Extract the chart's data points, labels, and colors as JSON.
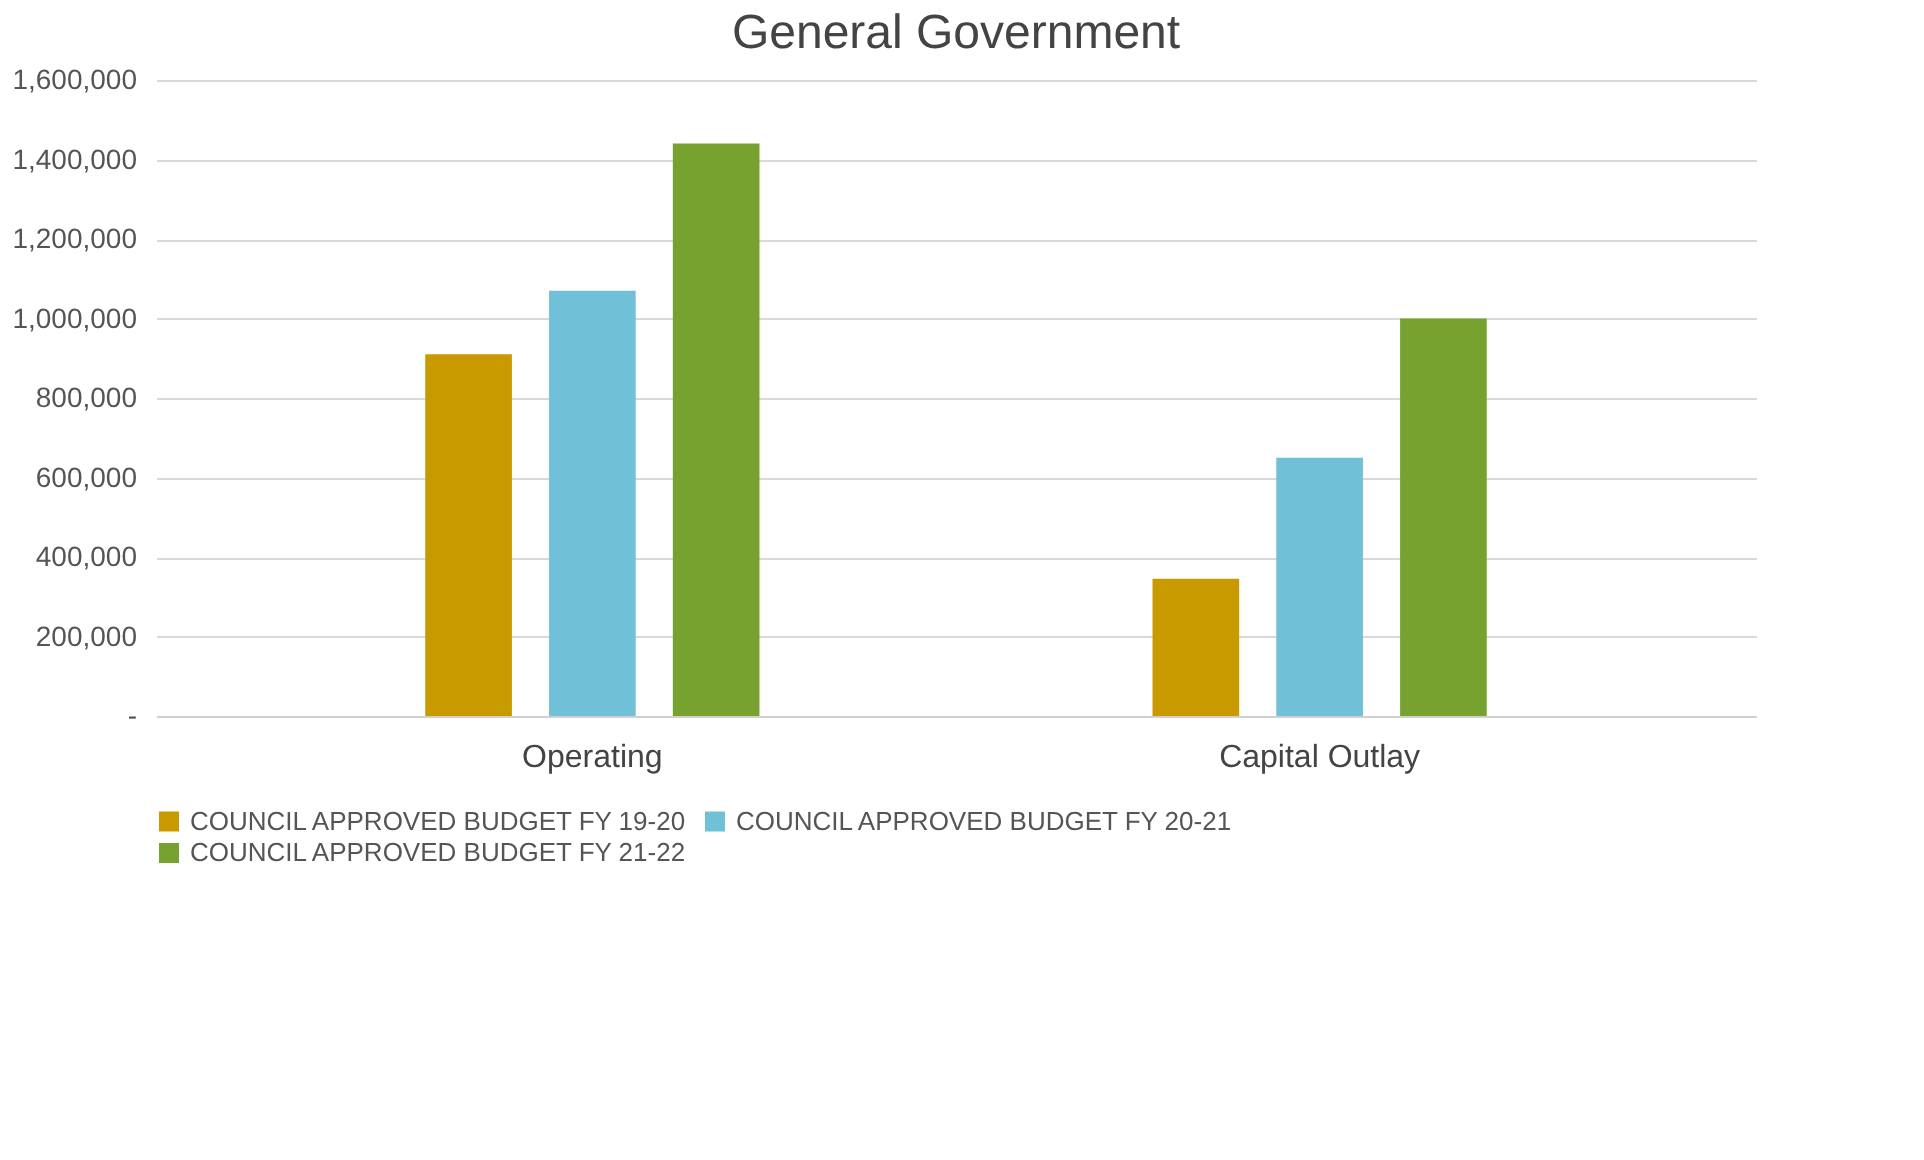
{
  "chart_data": {
    "type": "bar",
    "title": "General Government",
    "categories": [
      "Operating",
      "Capital Outlay"
    ],
    "series": [
      {
        "name": "COUNCIL APPROVED BUDGET FY 19-20",
        "color": "#c89a00",
        "values": [
          910000,
          345000
        ]
      },
      {
        "name": "COUNCIL APPROVED BUDGET FY 20-21",
        "color": "#70c0d8",
        "values": [
          1070000,
          650000
        ]
      },
      {
        "name": "COUNCIL APPROVED BUDGET FY 21-22",
        "color": "#78a22f",
        "values": [
          1440000,
          1000000
        ]
      }
    ],
    "ylim": [
      0,
      1600000
    ],
    "yticks": [
      {
        "value": 0,
        "label": "-"
      },
      {
        "value": 200000,
        "label": "200,000"
      },
      {
        "value": 400000,
        "label": "400,000"
      },
      {
        "value": 600000,
        "label": "600,000"
      },
      {
        "value": 800000,
        "label": "800,000"
      },
      {
        "value": 1000000,
        "label": "1,000,000"
      },
      {
        "value": 1200000,
        "label": "1,200,000"
      },
      {
        "value": 1400000,
        "label": "1,400,000"
      },
      {
        "value": 1600000,
        "label": "1,600,000"
      }
    ],
    "grid": "y",
    "legend": "bottom"
  }
}
